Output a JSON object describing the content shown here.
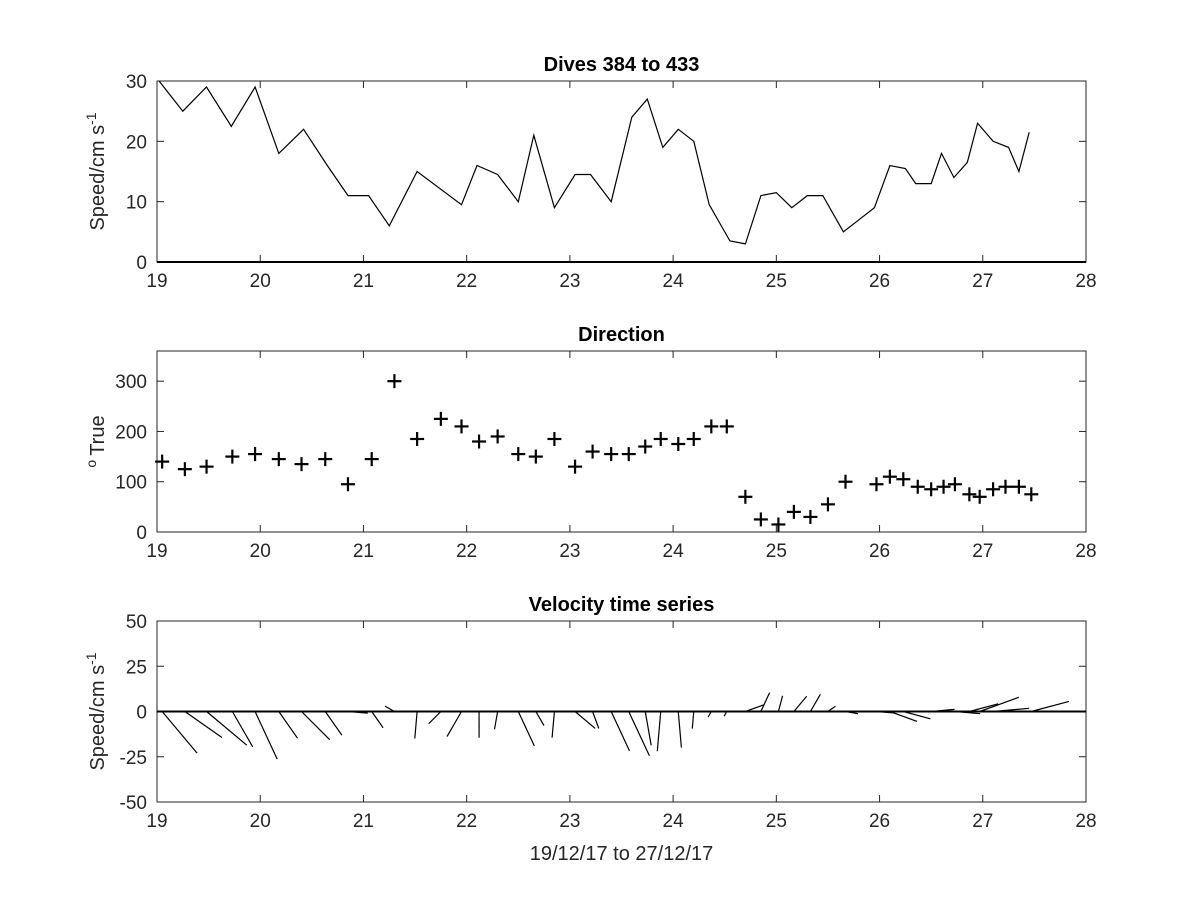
{
  "chart_data": [
    {
      "type": "line",
      "title": "Dives 384 to 433",
      "ylabel": "Speed/cm s",
      "ylabel_sup": "-1",
      "xlim": [
        19,
        28
      ],
      "ylim": [
        0,
        30
      ],
      "xticks": [
        19,
        20,
        21,
        22,
        23,
        24,
        25,
        26,
        27,
        28
      ],
      "yticks": [
        0,
        10,
        20,
        30
      ],
      "x": [
        19.02,
        19.25,
        19.48,
        19.72,
        19.95,
        20.18,
        20.42,
        20.65,
        20.85,
        21.05,
        21.25,
        21.52,
        21.95,
        22.1,
        22.3,
        22.5,
        22.65,
        22.85,
        23.05,
        23.2,
        23.4,
        23.6,
        23.75,
        23.9,
        24.05,
        24.2,
        24.35,
        24.55,
        24.7,
        24.85,
        25.0,
        25.15,
        25.3,
        25.45,
        25.65,
        25.8,
        25.95,
        26.1,
        26.25,
        26.35,
        26.5,
        26.6,
        26.72,
        26.85,
        26.95,
        27.1,
        27.25,
        27.35,
        27.45
      ],
      "values": [
        30,
        25,
        29,
        22.5,
        29,
        18,
        22,
        16,
        11,
        11,
        6,
        15,
        9.5,
        16,
        14.5,
        10,
        21,
        9,
        14.5,
        14.5,
        10,
        24,
        27,
        19,
        22,
        20,
        9.5,
        3.5,
        3,
        11,
        11.5,
        9,
        11,
        11,
        5,
        7,
        9,
        16,
        15.5,
        13,
        13,
        18,
        14,
        16.5,
        23,
        20,
        19,
        15,
        21.5
      ]
    },
    {
      "type": "scatter",
      "title": "Direction",
      "ylabel": "True",
      "ylabel_sup": "o",
      "xlim": [
        19,
        28
      ],
      "ylim": [
        0,
        360
      ],
      "xticks": [
        19,
        20,
        21,
        22,
        23,
        24,
        25,
        26,
        27,
        28
      ],
      "yticks": [
        0,
        100,
        200,
        300
      ],
      "x": [
        19.05,
        19.27,
        19.48,
        19.73,
        19.95,
        20.18,
        20.4,
        20.63,
        20.85,
        21.08,
        21.3,
        21.52,
        21.75,
        21.95,
        22.12,
        22.3,
        22.5,
        22.67,
        22.85,
        23.05,
        23.22,
        23.4,
        23.57,
        23.73,
        23.88,
        24.05,
        24.2,
        24.37,
        24.52,
        24.7,
        24.85,
        25.02,
        25.17,
        25.33,
        25.5,
        25.67,
        25.97,
        26.1,
        26.23,
        26.37,
        26.5,
        26.62,
        26.73,
        26.87,
        26.97,
        27.1,
        27.22,
        27.35,
        27.47
      ],
      "values": [
        140,
        125,
        130,
        150,
        155,
        145,
        135,
        145,
        95,
        145,
        300,
        185,
        225,
        210,
        180,
        190,
        155,
        150,
        185,
        130,
        160,
        155,
        155,
        170,
        185,
        175,
        185,
        210,
        210,
        70,
        25,
        15,
        40,
        30,
        55,
        100,
        95,
        110,
        105,
        90,
        85,
        90,
        95,
        75,
        70,
        85,
        90,
        90,
        75
      ]
    },
    {
      "type": "stick",
      "title": "Velocity time series",
      "xlabel": "19/12/17 to 27/12/17",
      "ylabel": "Speed/cm s",
      "ylabel_sup": "-1",
      "xlim": [
        19,
        28
      ],
      "ylim": [
        -50,
        50
      ],
      "xticks": [
        19,
        20,
        21,
        22,
        23,
        24,
        25,
        26,
        27,
        28
      ],
      "yticks": [
        -50,
        -25,
        0,
        25,
        50
      ],
      "x": [
        19.05,
        19.27,
        19.48,
        19.73,
        19.95,
        20.18,
        20.4,
        20.63,
        20.85,
        21.08,
        21.3,
        21.52,
        21.75,
        21.95,
        22.12,
        22.3,
        22.5,
        22.67,
        22.85,
        23.05,
        23.22,
        23.4,
        23.57,
        23.73,
        23.88,
        24.05,
        24.2,
        24.37,
        24.52,
        24.7,
        24.85,
        25.02,
        25.17,
        25.33,
        25.5,
        25.67,
        25.97,
        26.1,
        26.23,
        26.37,
        26.5,
        26.62,
        26.73,
        26.87,
        26.97,
        27.1,
        27.22,
        27.35,
        27.47
      ],
      "speed": [
        30,
        25,
        29,
        22.5,
        29,
        18,
        22,
        16,
        11,
        11,
        6,
        15,
        9.5,
        16,
        14.5,
        10,
        21,
        9,
        14.5,
        14.5,
        10,
        24,
        27,
        19,
        22,
        20,
        9.5,
        3.5,
        3,
        11,
        11.5,
        9,
        11,
        11,
        5,
        7,
        9,
        16,
        15.5,
        13,
        13,
        18,
        14,
        16.5,
        23,
        20,
        19,
        15,
        21.5
      ],
      "direction": [
        140,
        125,
        130,
        150,
        155,
        145,
        135,
        145,
        95,
        145,
        300,
        185,
        225,
        210,
        180,
        190,
        155,
        150,
        185,
        130,
        160,
        155,
        155,
        170,
        185,
        175,
        185,
        210,
        210,
        70,
        25,
        15,
        40,
        30,
        55,
        100,
        95,
        110,
        105,
        90,
        85,
        90,
        95,
        75,
        70,
        85,
        90,
        90,
        75
      ]
    }
  ]
}
